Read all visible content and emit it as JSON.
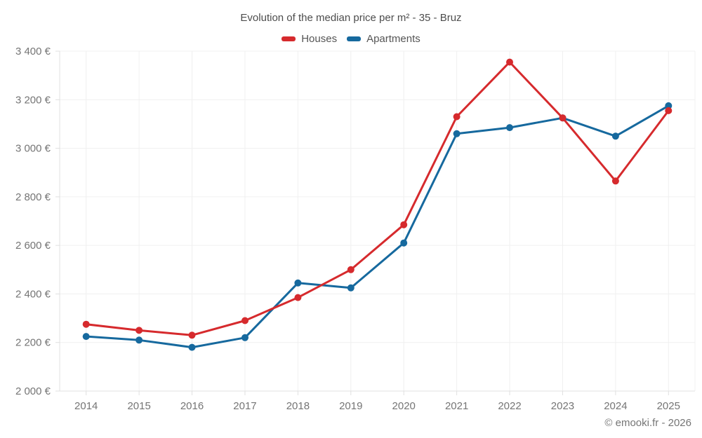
{
  "chart_data": {
    "type": "line",
    "title": "Evolution of the median price per m² - 35 - Bruz",
    "categories": [
      "2014",
      "2015",
      "2016",
      "2017",
      "2018",
      "2019",
      "2020",
      "2021",
      "2022",
      "2023",
      "2024",
      "2025"
    ],
    "series": [
      {
        "name": "Houses",
        "color": "#d62a2d",
        "values": [
          2275,
          2250,
          2230,
          2290,
          2385,
          2500,
          2685,
          3130,
          3355,
          3125,
          2865,
          3155
        ]
      },
      {
        "name": "Apartments",
        "color": "#16699e",
        "values": [
          2225,
          2210,
          2180,
          2220,
          2445,
          2425,
          2610,
          3060,
          3085,
          3125,
          3050,
          3175
        ]
      }
    ],
    "xlabel": "",
    "ylabel": "",
    "ylim": [
      2000,
      3400
    ],
    "y_ticks": [
      2000,
      2200,
      2400,
      2600,
      2800,
      3000,
      3200,
      3400
    ],
    "y_tick_suffix": " €",
    "grid": true,
    "legend_position": "top"
  },
  "footer": {
    "copyright": "© emooki.fr - 2026"
  },
  "colors": {
    "grid": "#f0f0f0",
    "axis": "#e0e0e0",
    "tick_text": "#757575",
    "title_text": "#4d4d4d"
  }
}
